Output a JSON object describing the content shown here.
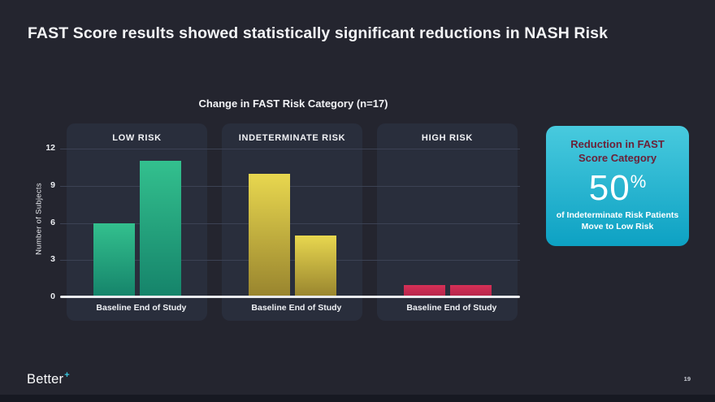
{
  "slide": {
    "title": "FAST Score results showed statistically significant reductions in NASH Risk",
    "page_number": "19",
    "logo_text": "Better",
    "logo_plus": "+"
  },
  "chart_data": {
    "type": "bar",
    "title": "Change in FAST Risk Category (n=17)",
    "ylabel": "Number of Subjects",
    "categories": [
      "Baseline",
      "End of Study"
    ],
    "yticks": [
      0,
      3,
      6,
      9,
      12
    ],
    "ylim": [
      0,
      13
    ],
    "grid": true,
    "legend": "none",
    "groups": [
      {
        "label": "LOW RISK",
        "values": [
          6,
          11
        ],
        "bar_color_top": "#33c08e",
        "bar_color_bottom": "#15836a"
      },
      {
        "label": "INDETERMINATE RISK",
        "values": [
          10,
          5
        ],
        "bar_color_top": "#e8d74f",
        "bar_color_bottom": "#98842e"
      },
      {
        "label": "HIGH RISK",
        "values": [
          1,
          1
        ],
        "bar_color_top": "#d63057",
        "bar_color_bottom": "#b2244a"
      }
    ]
  },
  "callout": {
    "heading": "Reduction in FAST\nScore Category",
    "stat": "50",
    "stat_suffix": "%",
    "description": "of Indeterminate Risk Patients\nMove to Low Risk",
    "bg_top": "#48cade",
    "bg_bottom": "#0da1c3",
    "heading_color": "#6b2138"
  },
  "colors": {
    "background": "#24252f",
    "panel": "#292e3c",
    "gridline": "#3c4254",
    "axis": "#e9ebef",
    "text": "#f2f3f6",
    "accent_cyan": "#38c5dc"
  }
}
